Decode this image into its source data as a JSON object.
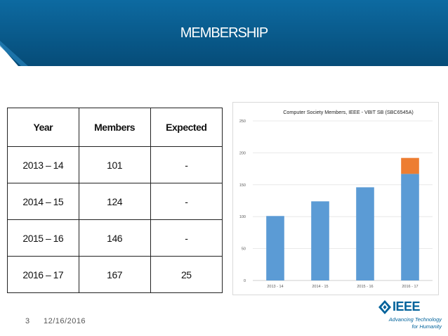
{
  "slide": {
    "title": "MEMBERSHIP",
    "page_number": "3",
    "date": "12/16/2016"
  },
  "logo": {
    "name": "IEEE",
    "tagline_1": "Advancing Technology",
    "tagline_2": "for Humanity"
  },
  "table": {
    "headers": [
      "Year",
      "Members",
      "Expected"
    ],
    "rows": [
      [
        "2013 – 14",
        "101",
        "-"
      ],
      [
        "2014 – 15",
        "124",
        "-"
      ],
      [
        "2015 – 16",
        "146",
        "-"
      ],
      [
        "2016 – 17",
        "167",
        "25"
      ]
    ]
  },
  "colors": {
    "banner": "#0a5d8e",
    "members_bar": "#5b9bd5",
    "expected_bar": "#ed7d31"
  },
  "chart_data": {
    "type": "bar",
    "title": "Computer Society Members, IEEE - VBIT SB (SBC6545A)",
    "categories": [
      "2013 - 14",
      "2014 - 15",
      "2015 - 16",
      "2016 - 17"
    ],
    "series": [
      {
        "values": [
          101,
          124,
          146,
          167
        ],
        "color": "#5b9bd5"
      },
      {
        "values": [
          0,
          0,
          0,
          25
        ],
        "color": "#ed7d31"
      }
    ],
    "stacked": true,
    "ylim": [
      0,
      250
    ],
    "yticks": [
      0,
      50,
      100,
      150,
      200,
      250
    ],
    "grid": true,
    "legend": false
  }
}
